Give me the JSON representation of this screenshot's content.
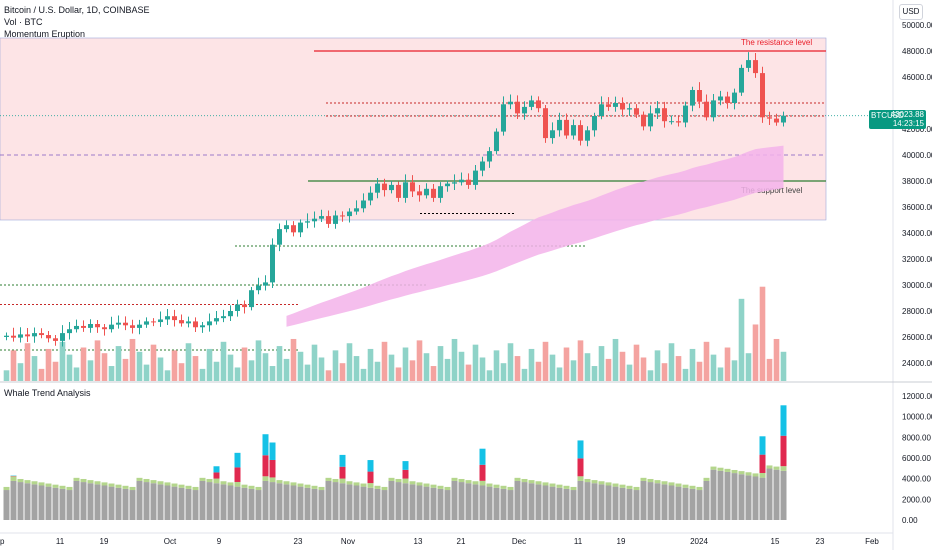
{
  "legend": {
    "symbol": "Bitcoin / U.S. Dollar, 1D, COINBASE",
    "volume": "Vol · BTC",
    "indicator": "Momentum Eruption"
  },
  "lower_pane_title": "Whale Trend Analysis",
  "currency_button": "USD",
  "price_tag": {
    "symbol": "BTCUSD",
    "price": "43023.88",
    "countdown": "14:23:15"
  },
  "annotations": {
    "resistance": "The resistance level",
    "support": "The support level"
  },
  "colors": {
    "up": "#26a69a",
    "down": "#ef5350",
    "vol_up": "#8fd3c8",
    "vol_down": "#f4a3a0",
    "zone_fill": "#fde4e6",
    "resistance": "#e91e2a",
    "support": "#2e7d32",
    "ribbon": "#f3b3ea",
    "whale_gray": "#a3a3a3",
    "whale_green": "#b4d68c",
    "whale_red": "#e0294f",
    "whale_cyan": "#14c1e6"
  },
  "chart_data": [
    {
      "type": "candlestick",
      "title": "Bitcoin / U.S. Dollar, 1D, COINBASE",
      "yaxis_ticks": [
        24000,
        26000,
        28000,
        30000,
        32000,
        34000,
        36000,
        38000,
        40000,
        42000,
        44000,
        46000,
        48000,
        50000
      ],
      "ylim": [
        22800,
        51000
      ],
      "last_price": 43023.88,
      "resistance_level": 48000,
      "support_level": 38000,
      "zone": [
        35000,
        49000
      ],
      "dotted_levels": [
        33000,
        35500,
        43000,
        44000
      ],
      "close": [
        26100,
        25950,
        26200,
        26050,
        26300,
        26150,
        25900,
        25700,
        26300,
        26600,
        26850,
        26700,
        27000,
        26750,
        26600,
        26950,
        27100,
        26900,
        26700,
        26950,
        27200,
        27150,
        27350,
        27600,
        27300,
        27050,
        27200,
        26750,
        26900,
        27200,
        27450,
        27600,
        28000,
        28500,
        28300,
        29600,
        29950,
        30200,
        33100,
        34300,
        34600,
        34050,
        34800,
        34900,
        35100,
        35300,
        34700,
        35350,
        35300,
        35650,
        35900,
        36500,
        37100,
        37800,
        37300,
        37700,
        36700,
        37900,
        37200,
        36900,
        37400,
        36700,
        37600,
        37800,
        37900,
        38100,
        37700,
        38800,
        39500,
        40300,
        41800,
        43900,
        44100,
        43200,
        43700,
        44200,
        43600,
        41300,
        41900,
        42700,
        41500,
        42300,
        41100,
        41900,
        43000,
        43900,
        43700,
        44000,
        43500,
        43600,
        43100,
        42200,
        43200,
        43600,
        42600,
        42600,
        42500,
        43800,
        45000,
        44100,
        42900,
        44200,
        44500,
        44000,
        44800,
        46700,
        47300,
        46300,
        42900,
        42800,
        42500,
        43023.88
      ],
      "open": [
        26000,
        26100,
        25950,
        26200,
        26050,
        26300,
        26150,
        25900,
        25700,
        26300,
        26600,
        26850,
        26700,
        27000,
        26750,
        26600,
        26950,
        27100,
        26900,
        26700,
        26950,
        27200,
        27150,
        27350,
        27600,
        27300,
        27050,
        27200,
        26750,
        26900,
        27200,
        27450,
        27600,
        28000,
        28500,
        28300,
        29600,
        29950,
        30200,
        33100,
        34300,
        34600,
        34050,
        34800,
        34900,
        35100,
        35300,
        34700,
        35350,
        35300,
        35650,
        35900,
        36500,
        37100,
        37800,
        37300,
        37700,
        36700,
        37900,
        37200,
        36900,
        37400,
        36700,
        37600,
        37800,
        37900,
        38100,
        37700,
        38800,
        39500,
        40300,
        41800,
        43900,
        44100,
        43200,
        43700,
        44200,
        43600,
        41300,
        41900,
        42700,
        41500,
        42300,
        41100,
        41900,
        43000,
        43900,
        43700,
        44000,
        43500,
        43600,
        43100,
        42200,
        43200,
        43600,
        42600,
        42600,
        42500,
        43800,
        45000,
        44100,
        42900,
        44200,
        44500,
        44000,
        44800,
        46700,
        47300,
        46300,
        42900,
        42800,
        42500
      ],
      "volume_axis_labels": [],
      "x_tick_labels": [
        "ep",
        "11",
        "19",
        "Oct",
        "9",
        "23",
        "Nov",
        "13",
        "21",
        "Dec",
        "11",
        "19",
        "2024",
        "15",
        "23",
        "Feb"
      ]
    },
    {
      "type": "stacked_bar",
      "title": "Whale Trend Analysis",
      "yaxis_ticks": [
        0,
        2000,
        4000,
        6000,
        8000,
        10000,
        12000
      ],
      "tick_labels": [
        "0.00",
        "2000.00",
        "4000.00",
        "6000.00",
        "8000.00",
        "10000.00",
        "12000.00"
      ],
      "ylim": [
        -800,
        13000
      ],
      "series": [
        {
          "name": "",
          "color": "#a3a3a3"
        },
        {
          "name": "",
          "color": "#b4d68c"
        },
        {
          "name": "",
          "color": "#e0294f"
        },
        {
          "name": "",
          "color": "#14c1e6"
        }
      ],
      "spikes": [
        {
          "index": 1,
          "total": 4300
        },
        {
          "index": 30,
          "total": 5200
        },
        {
          "index": 33,
          "total": 6500
        },
        {
          "index": 37,
          "total": 8300
        },
        {
          "index": 38,
          "total": 7500
        },
        {
          "index": 48,
          "total": 6300
        },
        {
          "index": 52,
          "total": 5800
        },
        {
          "index": 57,
          "total": 5700
        },
        {
          "index": 68,
          "total": 6900
        },
        {
          "index": 82,
          "total": 7700
        },
        {
          "index": 108,
          "total": 8100
        },
        {
          "index": 111,
          "total": 11100
        }
      ]
    }
  ]
}
